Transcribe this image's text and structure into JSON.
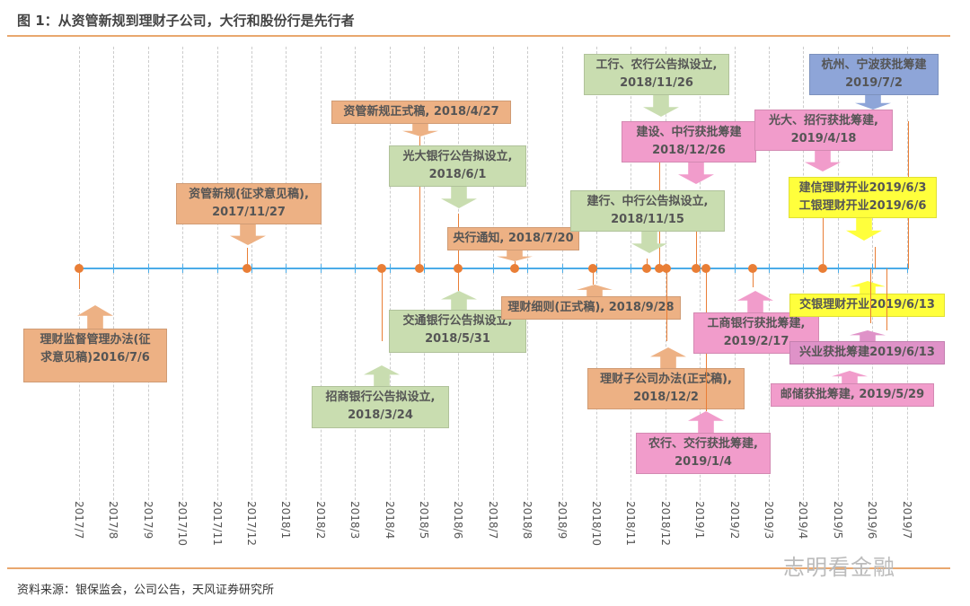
{
  "title": "图 1：从资管新规到理财子公司，大行和股份行是先行者",
  "source": "资料来源：银保监会，公司公告，天风证券研究所",
  "watermark": "志明看金融",
  "axis": {
    "months": [
      "2017/7",
      "2017/8",
      "2017/9",
      "2017/10",
      "2017/11",
      "2017/12",
      "2018/1",
      "2018/2",
      "2018/3",
      "2018/4",
      "2018/5",
      "2018/6",
      "2018/7",
      "2018/8",
      "2018/9",
      "2018/10",
      "2018/11",
      "2018/12",
      "2019/1",
      "2019/2",
      "2019/3",
      "2019/4",
      "2019/5",
      "2019/6",
      "2019/7"
    ],
    "line_color": "#4BACE8",
    "dot_color": "#E97E36"
  },
  "colors": {
    "policy": "#EDB184",
    "announce": "#C9DDB0",
    "approve": "#F19CCB",
    "approve2": "#DF92C8",
    "open": "#FFFF3C",
    "city": "#8EA5D8"
  },
  "events": [
    {
      "lines": [
        "理财监督管理办法(征",
        "求意见稿)2016/7/6"
      ],
      "date": "2016/7/6",
      "kind": "policy"
    },
    {
      "lines": [
        "资管新规(征求意见稿),",
        "2017/11/27"
      ],
      "date": "2017/11/27",
      "kind": "policy"
    },
    {
      "lines": [
        "资管新规正式稿, 2018/4/27"
      ],
      "date": "2018/4/27",
      "kind": "policy"
    },
    {
      "lines": [
        "光大银行公告拟设立,",
        "2018/6/1"
      ],
      "date": "2018/6/1",
      "kind": "announce"
    },
    {
      "lines": [
        "央行通知, 2018/7/20"
      ],
      "date": "2018/7/20",
      "kind": "policy"
    },
    {
      "lines": [
        "交通银行公告拟设立,",
        "2018/5/31"
      ],
      "date": "2018/5/31",
      "kind": "announce"
    },
    {
      "lines": [
        "招商银行公告拟设立,",
        "2018/3/24"
      ],
      "date": "2018/3/24",
      "kind": "announce"
    },
    {
      "lines": [
        "理财细则(正式稿), 2018/9/28"
      ],
      "date": "2018/9/28",
      "kind": "policy"
    },
    {
      "lines": [
        "工行、农行公告拟设立,",
        "2018/11/26"
      ],
      "date": "2018/11/26",
      "kind": "announce"
    },
    {
      "lines": [
        "建设、中行获批筹建",
        "2018/12/26"
      ],
      "date": "2018/12/26",
      "kind": "approve"
    },
    {
      "lines": [
        "建行、中行公告拟设立,",
        "2018/11/15"
      ],
      "date": "2018/11/15",
      "kind": "announce"
    },
    {
      "lines": [
        "理财子公司办法(正式稿),",
        "2018/12/2"
      ],
      "date": "2018/12/2",
      "kind": "policy"
    },
    {
      "lines": [
        "农行、交行获批筹建,",
        "2019/1/4"
      ],
      "date": "2019/1/4",
      "kind": "approve"
    },
    {
      "lines": [
        "工商银行获批筹建,",
        "2019/2/17"
      ],
      "date": "2019/2/17",
      "kind": "approve"
    },
    {
      "lines": [
        "光大、招行获批筹建,",
        "2019/4/18"
      ],
      "date": "2019/4/18",
      "kind": "approve"
    },
    {
      "lines": [
        "杭州、宁波获批筹建",
        "2019/7/2"
      ],
      "date": "2019/7/2",
      "kind": "city"
    },
    {
      "lines": [
        "建信理财开业2019/6/3",
        "工银理财开业2019/6/6"
      ],
      "date": "2019/6/3",
      "kind": "open"
    },
    {
      "lines": [
        "交银理财开业2019/6/13"
      ],
      "date": "2019/6/13",
      "kind": "open"
    },
    {
      "lines": [
        "兴业获批筹建2019/6/13"
      ],
      "date": "2019/6/13",
      "kind": "approve2"
    },
    {
      "lines": [
        "邮储获批筹建, 2019/5/29"
      ],
      "date": "2019/5/29",
      "kind": "approve"
    }
  ]
}
